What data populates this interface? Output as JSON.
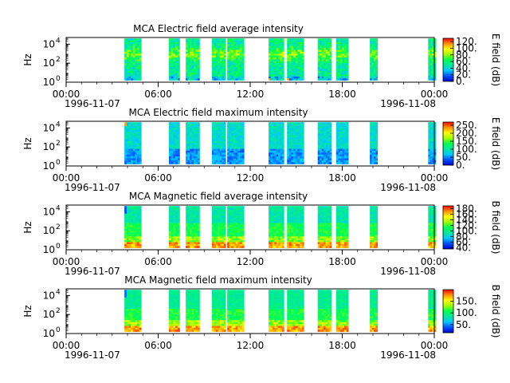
{
  "chart_data": [
    {
      "type": "heatmap",
      "title": "MCA  Electric field average intensity",
      "ylabel": "Hz",
      "y_ticks": [
        {
          "exp": "0",
          "value": 1
        },
        {
          "exp": "2",
          "value": 100
        },
        {
          "exp": "4",
          "value": 10000
        }
      ],
      "x_ticks": [
        "00:00",
        "06:00",
        "12:00",
        "18:00",
        "00:00"
      ],
      "x_start_date": "1996-11-07",
      "x_end_date": "1996-11-08",
      "colorbar_label": "E field (dB)",
      "colorbar_ticks": [
        "0.",
        "20.",
        "40.",
        "60.",
        "80.",
        "100.",
        "120."
      ],
      "colorbar_range": [
        0,
        130
      ],
      "field": "electric",
      "stat": "average"
    },
    {
      "type": "heatmap",
      "title": "MCA  Electric field maximum intensity",
      "ylabel": "Hz",
      "y_ticks": [
        {
          "exp": "0",
          "value": 1
        },
        {
          "exp": "2",
          "value": 100
        },
        {
          "exp": "4",
          "value": 10000
        }
      ],
      "x_ticks": [
        "00:00",
        "06:00",
        "12:00",
        "18:00",
        "00:00"
      ],
      "x_start_date": "1996-11-07",
      "x_end_date": "1996-11-08",
      "colorbar_label": "E field (dB)",
      "colorbar_ticks": [
        "0.",
        "50.",
        "100.",
        "150.",
        "200.",
        "250."
      ],
      "colorbar_range": [
        0,
        270
      ],
      "field": "electric",
      "stat": "maximum"
    },
    {
      "type": "heatmap",
      "title": "MCA  Magnetic field average intensity",
      "ylabel": "Hz",
      "y_ticks": [
        {
          "exp": "0",
          "value": 1
        },
        {
          "exp": "2",
          "value": 100
        },
        {
          "exp": "4",
          "value": 10000
        }
      ],
      "x_ticks": [
        "00:00",
        "06:00",
        "12:00",
        "18:00",
        "00:00"
      ],
      "x_start_date": "1996-11-07",
      "x_end_date": "1996-11-08",
      "colorbar_label": "B field (dB)",
      "colorbar_ticks": [
        "40.",
        "60.",
        "80.",
        "100.",
        "120.",
        "140.",
        "160.",
        "180."
      ],
      "colorbar_range": [
        35,
        190
      ],
      "field": "magnetic",
      "stat": "average"
    },
    {
      "type": "heatmap",
      "title": "MCA  Magnetic field maximum intensity",
      "ylabel": "Hz",
      "y_ticks": [
        {
          "exp": "0",
          "value": 1
        },
        {
          "exp": "2",
          "value": 100
        },
        {
          "exp": "4",
          "value": 10000
        }
      ],
      "x_ticks": [
        "00:00",
        "06:00",
        "12:00",
        "18:00",
        "00:00"
      ],
      "x_start_date": "1996-11-07",
      "x_end_date": "1996-11-08",
      "colorbar_label": "B field (dB)",
      "colorbar_ticks": [
        "50.",
        "100.",
        "150."
      ],
      "colorbar_range": [
        15,
        200
      ],
      "field": "magnetic",
      "stat": "maximum"
    }
  ],
  "data_intervals_hours": [
    [
      3.8,
      4.9
    ],
    [
      6.7,
      7.4
    ],
    [
      7.8,
      8.7
    ],
    [
      9.5,
      10.4
    ],
    [
      10.5,
      11.6
    ],
    [
      13.2,
      14.2
    ],
    [
      14.4,
      15.5
    ],
    [
      16.4,
      17.3
    ],
    [
      17.6,
      18.4
    ],
    [
      19.8,
      20.3
    ],
    [
      23.6,
      24.1
    ]
  ],
  "colorscale": [
    "#0000c8",
    "#0050ff",
    "#00c8ff",
    "#00e8a0",
    "#00ff50",
    "#a0ff00",
    "#ffff00",
    "#ff9000",
    "#ff0000"
  ]
}
